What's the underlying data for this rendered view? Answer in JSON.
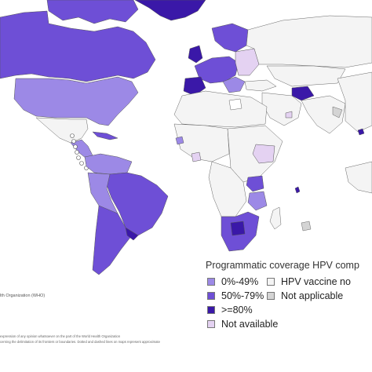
{
  "legend": {
    "title": "Programmatic coverage HPV comp",
    "items": [
      {
        "label": "0%-49%",
        "color": "#9c89e6"
      },
      {
        "label": "HPV vaccine no",
        "color": "#f4f4f4"
      },
      {
        "label": "50%-79%",
        "color": "#6e4fd6"
      },
      {
        "label": "Not applicable",
        "color": "#d4d4d4"
      },
      {
        "label": ">=80%",
        "color": "#3a18a8"
      },
      {
        "label": "Not available",
        "color": "#e4d2f2"
      }
    ]
  },
  "credit": "lth Organization (WHO)",
  "disclaimer": [
    "expression of any opinion whatsoever on the part of the World Health Organization",
    "cerning the delimitation of its frontiers or boundaries. Dotted and dashed lines on maps represent approximate"
  ]
}
